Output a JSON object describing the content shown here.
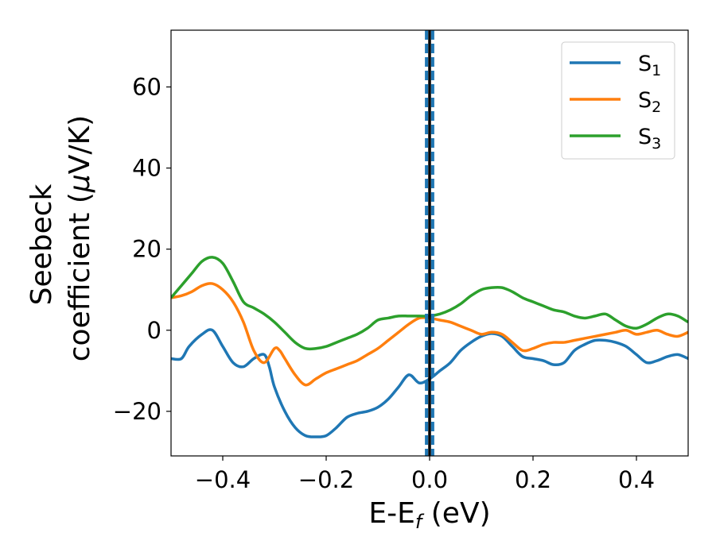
{
  "chart_data": {
    "type": "line",
    "xlabel": {
      "main": "E-E",
      "sub": "f",
      "unit": " (eV)"
    },
    "ylabel": {
      "line1": "Seebeck",
      "line2_pre": "coefficient  (",
      "line2_mu": "μ",
      "line2_post": "V/K)"
    },
    "xlim": [
      -0.5,
      0.5
    ],
    "ylim": [
      -31,
      74
    ],
    "x_ticks": [
      -0.4,
      -0.2,
      0.0,
      0.2,
      0.4
    ],
    "x_tick_labels": [
      "−0.4",
      "−0.2",
      "0.0",
      "0.2",
      "0.4"
    ],
    "y_ticks": [
      -20,
      0,
      20,
      40,
      60
    ],
    "y_tick_labels": [
      "−20",
      "0",
      "20",
      "40",
      "60"
    ],
    "grid": false,
    "legend_position": "top-right",
    "fermi_line": {
      "x": 0.0,
      "color": "#000000"
    },
    "band_lines": {
      "x": [
        -0.006,
        0.006
      ],
      "color": "#1f77b4",
      "style": "dashed"
    },
    "series": [
      {
        "name": "S",
        "sub": "1",
        "color": "#1f77b4",
        "x": [
          -0.5,
          -0.48,
          -0.465,
          -0.44,
          -0.42,
          -0.4,
          -0.38,
          -0.36,
          -0.34,
          -0.32,
          -0.31,
          -0.3,
          -0.28,
          -0.26,
          -0.24,
          -0.22,
          -0.2,
          -0.18,
          -0.16,
          -0.14,
          -0.12,
          -0.1,
          -0.08,
          -0.06,
          -0.04,
          -0.02,
          0.0,
          0.02,
          0.04,
          0.06,
          0.08,
          0.1,
          0.12,
          0.14,
          0.16,
          0.18,
          0.2,
          0.22,
          0.24,
          0.26,
          0.28,
          0.3,
          0.32,
          0.34,
          0.36,
          0.38,
          0.4,
          0.42,
          0.44,
          0.46,
          0.48,
          0.5
        ],
        "y": [
          -7,
          -7,
          -4,
          -1,
          0,
          -4,
          -8,
          -9,
          -7,
          -6,
          -9,
          -14,
          -20,
          -24,
          -26,
          -26.3,
          -26,
          -24,
          -21.5,
          -20.5,
          -20,
          -19,
          -17,
          -14,
          -11,
          -13,
          -12,
          -10,
          -8,
          -5,
          -3,
          -1.5,
          -0.8,
          -1.5,
          -4,
          -6.5,
          -7,
          -7.5,
          -8.5,
          -8,
          -5,
          -3.5,
          -2.5,
          -2.5,
          -3,
          -4,
          -6,
          -8,
          -7.5,
          -6.5,
          -6,
          -7
        ]
      },
      {
        "name": "S",
        "sub": "2",
        "color": "#ff7f0e",
        "x": [
          -0.5,
          -0.48,
          -0.46,
          -0.44,
          -0.42,
          -0.4,
          -0.38,
          -0.36,
          -0.34,
          -0.32,
          -0.3,
          -0.29,
          -0.28,
          -0.26,
          -0.24,
          -0.22,
          -0.2,
          -0.18,
          -0.16,
          -0.14,
          -0.12,
          -0.1,
          -0.08,
          -0.06,
          -0.04,
          -0.02,
          0.0,
          0.02,
          0.04,
          0.06,
          0.08,
          0.1,
          0.12,
          0.14,
          0.16,
          0.18,
          0.2,
          0.22,
          0.24,
          0.26,
          0.28,
          0.3,
          0.32,
          0.34,
          0.36,
          0.38,
          0.4,
          0.42,
          0.44,
          0.46,
          0.48,
          0.5
        ],
        "y": [
          8,
          8.5,
          9.5,
          11,
          11.5,
          10,
          7,
          2,
          -5,
          -8,
          -4.5,
          -5,
          -7,
          -11,
          -13.5,
          -12,
          -10.5,
          -9.5,
          -8.5,
          -7.5,
          -6,
          -4.5,
          -2.5,
          -0.5,
          1.5,
          3,
          3,
          2.5,
          2,
          1,
          0,
          -1,
          -0.5,
          -1,
          -3,
          -5,
          -4.5,
          -3.5,
          -3,
          -3,
          -2.5,
          -2,
          -1.5,
          -1,
          -0.5,
          0,
          -1,
          -0.5,
          0,
          -1,
          -1.5,
          -0.5
        ]
      },
      {
        "name": "S",
        "sub": "3",
        "color": "#2ca02c",
        "x": [
          -0.5,
          -0.48,
          -0.46,
          -0.44,
          -0.42,
          -0.4,
          -0.38,
          -0.36,
          -0.34,
          -0.32,
          -0.3,
          -0.28,
          -0.26,
          -0.24,
          -0.22,
          -0.2,
          -0.18,
          -0.16,
          -0.14,
          -0.12,
          -0.1,
          -0.08,
          -0.06,
          -0.04,
          -0.02,
          0.0,
          0.02,
          0.04,
          0.06,
          0.08,
          0.1,
          0.12,
          0.14,
          0.16,
          0.18,
          0.2,
          0.22,
          0.24,
          0.26,
          0.28,
          0.3,
          0.32,
          0.34,
          0.36,
          0.38,
          0.4,
          0.42,
          0.44,
          0.46,
          0.48,
          0.5
        ],
        "y": [
          8,
          11,
          14,
          17,
          18,
          16.5,
          12,
          7,
          5.5,
          4,
          2,
          -0.5,
          -3,
          -4.5,
          -4.5,
          -4,
          -3,
          -2,
          -1,
          0.5,
          2.5,
          3,
          3.5,
          3.5,
          3.5,
          3.5,
          4,
          5,
          6.5,
          8.5,
          10,
          10.5,
          10.5,
          9.5,
          8,
          7,
          6,
          5,
          4.5,
          3.5,
          3,
          3.5,
          4,
          2.5,
          1,
          0.5,
          1.5,
          3,
          4,
          3.5,
          2
        ]
      }
    ]
  }
}
